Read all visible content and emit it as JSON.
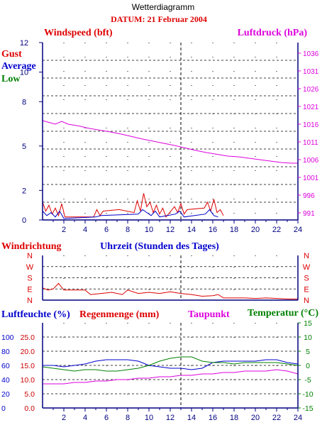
{
  "page_title": "Wetterdiagramm",
  "date_label": "DATUM: 21 Februar 2004",
  "colors": {
    "red": "#dd0000",
    "blue": "#0000cc",
    "green": "#008000",
    "magenta": "#dd00dd",
    "darkred": "#cc0000",
    "axis_blue": "#000080"
  },
  "chart_data": [
    {
      "id": "wind",
      "type": "line",
      "title_left": "Windspeed (bft)",
      "title_right": "Luftdruck (hPa)",
      "legend": [
        "Gust",
        "Average",
        "Low"
      ],
      "x_ticks": [
        "2",
        "4",
        "6",
        "8",
        "10",
        "12",
        "14",
        "16",
        "18",
        "20",
        "22",
        "24"
      ],
      "y_left_ticks": [
        "0",
        "2",
        "5",
        "8",
        "10",
        "12"
      ],
      "y_right_ticks": [
        "991",
        "996",
        "1001",
        "1006",
        "1011",
        "1016",
        "1021",
        "1026",
        "1031",
        "1036"
      ],
      "xlim": [
        0,
        24
      ],
      "ylim_left": [
        0,
        12
      ],
      "ylim_right": [
        989,
        1039
      ],
      "series": [
        {
          "name": "Luftdruck",
          "axis": "right",
          "x": [
            0,
            0.6,
            1.2,
            1.8,
            2.4,
            3.4,
            4.4,
            5.4,
            6.4,
            7.4,
            8.4,
            9.4,
            10.4,
            11.4,
            12.4,
            13.4,
            14.4,
            15.4,
            16.4,
            17.4,
            18.4,
            19.4,
            20.4,
            21.4,
            22.4,
            23.4,
            24
          ],
          "values": [
            1017,
            1016.5,
            1016,
            1016.8,
            1016,
            1015.5,
            1014.8,
            1014.3,
            1013.8,
            1013.2,
            1012.5,
            1011.8,
            1011.2,
            1010.6,
            1010,
            1009.3,
            1008.6,
            1008,
            1007.5,
            1007,
            1006.8,
            1006.4,
            1006,
            1005.6,
            1005.2,
            1005,
            1005
          ]
        },
        {
          "name": "Gust",
          "axis": "left",
          "x": [
            0,
            0.3,
            0.6,
            0.9,
            1.2,
            1.5,
            1.8,
            2.1,
            4.8,
            5.1,
            5.4,
            5.7,
            7.2,
            8.6,
            8.9,
            9.2,
            9.5,
            9.8,
            10.1,
            10.4,
            10.7,
            11.0,
            11.3,
            11.6,
            12.4,
            12.7,
            13.0,
            13.3,
            13.6,
            15.2,
            15.5,
            15.8,
            16.1,
            16.4,
            16.7,
            17.0
          ],
          "values": [
            1.2,
            0.6,
            1.0,
            0.4,
            0.8,
            0.3,
            1.1,
            0.2,
            0.2,
            0.7,
            0.3,
            0.6,
            0.7,
            0.5,
            1.3,
            0.6,
            1.8,
            0.9,
            1.2,
            0.5,
            1.0,
            0.4,
            0.8,
            0.2,
            0.9,
            0.5,
            1.1,
            0.4,
            0.7,
            0.8,
            1.2,
            0.6,
            1.4,
            0.5,
            0.7,
            0.3
          ]
        },
        {
          "name": "Average",
          "axis": "left",
          "x": [
            0,
            0.4,
            0.8,
            1.2,
            1.6,
            2.0,
            5.0,
            5.5,
            9.0,
            9.4,
            9.8,
            10.2,
            10.6,
            11.0,
            12.5,
            12.9,
            13.3,
            15.3,
            15.7,
            16.1,
            16.5
          ],
          "values": [
            0.6,
            0.3,
            0.5,
            0.2,
            0.6,
            0.1,
            0.2,
            0.3,
            0.4,
            0.7,
            0.5,
            0.3,
            0.6,
            0.2,
            0.4,
            0.6,
            0.2,
            0.4,
            0.7,
            0.3,
            0.2
          ]
        }
      ]
    },
    {
      "id": "direction",
      "type": "line",
      "title_left": "Windrichtung",
      "title_center": "Uhrzeit (Stunden des Tages)",
      "y_ticks": [
        "N",
        "W",
        "S",
        "E",
        "N"
      ],
      "xlim": [
        0,
        24
      ],
      "series": [
        {
          "name": "Windrichtung",
          "x": [
            0,
            0.5,
            1.0,
            1.5,
            2.0,
            3.0,
            4.0,
            4.5,
            5.5,
            6.5,
            7.5,
            8.0,
            9.0,
            10.0,
            11.0,
            12.0,
            13.0,
            14.0,
            15.0,
            16.0,
            16.5,
            17.0,
            18.0,
            19.0,
            20.0,
            21.0,
            22.0,
            23.0,
            24.0
          ],
          "values": [
            1.1,
            0.9,
            1.0,
            1.5,
            0.9,
            0.9,
            0.9,
            0.5,
            0.6,
            0.7,
            0.5,
            0.9,
            0.6,
            0.7,
            0.6,
            0.75,
            0.6,
            0.5,
            0.35,
            0.4,
            0.5,
            0.2,
            0.2,
            0.2,
            0.15,
            0.2,
            0.15,
            0.1,
            0.1
          ]
        }
      ]
    },
    {
      "id": "humidity",
      "type": "line",
      "label_humidity": "Luftfeuchte (%)",
      "label_rain": "Regenmenge (mm)",
      "label_dewpoint": "Taupunkt",
      "label_temperature": "Temperatur (°C)",
      "x_ticks": [
        "2",
        "4",
        "6",
        "8",
        "10",
        "12",
        "14",
        "16",
        "18",
        "20",
        "22",
        "24"
      ],
      "y_left_humidity_ticks": [
        "0",
        "20",
        "40",
        "60",
        "80",
        "100"
      ],
      "y_left_rain_ticks": [
        "0.0",
        "5.0",
        "10.0",
        "15.0",
        "20.0",
        "25.0"
      ],
      "y_right_ticks": [
        "-15",
        "-10",
        "-5",
        "0",
        "5",
        "10",
        "15"
      ],
      "xlim": [
        0,
        24
      ],
      "ylim_right": [
        -15,
        15
      ],
      "series": [
        {
          "name": "Luftfeuchte",
          "axis": "right",
          "x": [
            0,
            1,
            2,
            3,
            4,
            5,
            6,
            7,
            8,
            9,
            10,
            11,
            12,
            13,
            14,
            15,
            16,
            17,
            18,
            19,
            20,
            21,
            22,
            23,
            24
          ],
          "values": [
            0,
            0,
            -0.5,
            0,
            0.5,
            1.5,
            2,
            2,
            2,
            1.5,
            0,
            -0.5,
            -1,
            -1,
            -1.5,
            -1,
            1,
            1.5,
            1.5,
            1.5,
            1.5,
            2,
            2,
            1,
            0.5
          ]
        },
        {
          "name": "Temperatur",
          "axis": "right",
          "x": [
            0,
            1,
            2,
            3,
            4,
            5,
            6,
            7,
            8,
            9,
            10,
            11,
            12,
            13,
            14,
            15,
            16,
            17,
            18,
            19,
            20,
            21,
            22,
            23,
            24
          ],
          "values": [
            -0.5,
            -1,
            -1.5,
            -2,
            -1.5,
            -1.5,
            -2,
            -2,
            -1.5,
            -1,
            0,
            1.5,
            2.5,
            3,
            3,
            1.5,
            1,
            1,
            0.5,
            1,
            1,
            1,
            1,
            0.5,
            0
          ]
        },
        {
          "name": "Taupunkt",
          "axis": "right",
          "x": [
            0,
            1,
            2,
            3,
            4,
            5,
            6,
            7,
            8,
            9,
            10,
            11,
            12,
            13,
            14,
            15,
            16,
            17,
            18,
            19,
            20,
            21,
            22,
            23,
            24
          ],
          "values": [
            -6.5,
            -6.5,
            -6.5,
            -6,
            -6,
            -5.5,
            -5.5,
            -5,
            -5,
            -4.5,
            -4.5,
            -4,
            -4,
            -3.5,
            -3.5,
            -3,
            -3,
            -2.5,
            -2.5,
            -2,
            -2,
            -2,
            -1.5,
            -2,
            -3
          ]
        }
      ]
    }
  ]
}
